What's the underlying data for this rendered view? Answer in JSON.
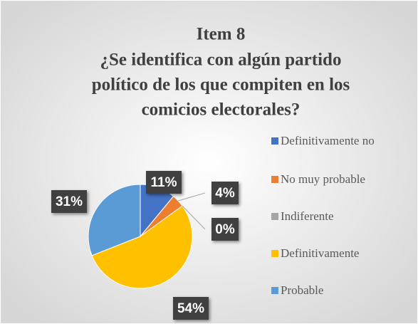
{
  "chart_data": {
    "type": "pie",
    "title": [
      "Item 8",
      "¿Se identifica con algún partido",
      "político de los que compiten en los",
      "comicios electorales?"
    ],
    "categories": [
      "Definitivamente no",
      "No muy probable",
      "Indiferente",
      "Definitivamente",
      "Probable"
    ],
    "values": [
      11,
      4,
      0,
      54,
      31
    ],
    "value_labels": [
      "11%",
      "4%",
      "0%",
      "54%",
      "31%"
    ],
    "colors": [
      "#4472c4",
      "#ed7d31",
      "#a5a5a5",
      "#ffc000",
      "#5b9bd5"
    ],
    "legend": "right"
  }
}
